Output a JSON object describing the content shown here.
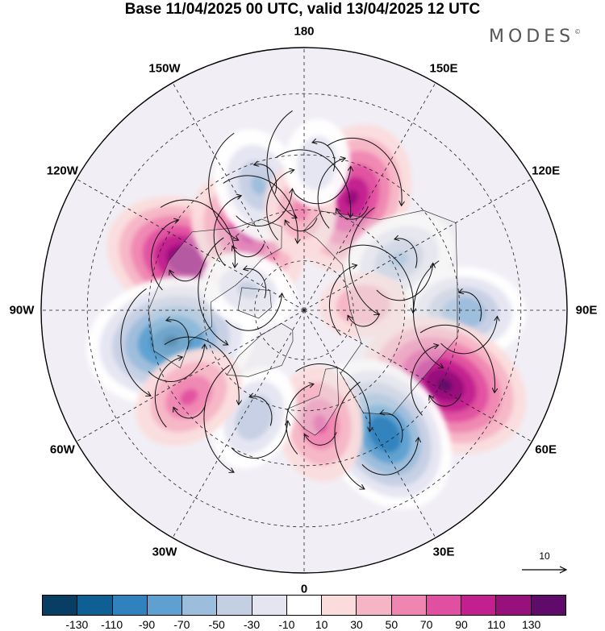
{
  "header": {
    "title": "Base 11/04/2025 00 UTC, valid 13/04/2025 12 UTC",
    "logo_text": "MODES",
    "logo_mark": "©"
  },
  "map": {
    "projection": "north-polar-stereographic",
    "grid": true,
    "meridian_labels": [
      {
        "label": "180",
        "lon": 180
      },
      {
        "label": "150E",
        "lon": 150
      },
      {
        "label": "120E",
        "lon": 120
      },
      {
        "label": "90E",
        "lon": 90
      },
      {
        "label": "60E",
        "lon": 60
      },
      {
        "label": "30E",
        "lon": 30
      },
      {
        "label": "0",
        "lon": 0
      },
      {
        "label": "30W",
        "lon": -30
      },
      {
        "label": "60W",
        "lon": -60
      },
      {
        "label": "90W",
        "lon": -90
      },
      {
        "label": "120W",
        "lon": -120
      },
      {
        "label": "150W",
        "lon": -150
      }
    ],
    "anomaly_centers": [
      {
        "lon": -113,
        "lat": 52,
        "value": 110
      },
      {
        "lon": -77,
        "lat": 50,
        "value": -120
      },
      {
        "lon": -143,
        "lat": 62,
        "value": 80
      },
      {
        "lon": -160,
        "lat": 51,
        "value": -60
      },
      {
        "lon": 157,
        "lat": 54,
        "value": 100
      },
      {
        "lon": 118,
        "lat": 58,
        "value": -60
      },
      {
        "lon": 89,
        "lat": 44,
        "value": -70
      },
      {
        "lon": 62,
        "lat": 44,
        "value": 120
      },
      {
        "lon": 33,
        "lat": 47,
        "value": -110
      },
      {
        "lon": 8,
        "lat": 56,
        "value": 60
      },
      {
        "lon": -25,
        "lat": 55,
        "value": -50
      },
      {
        "lon": -53,
        "lat": 48,
        "value": 60
      },
      {
        "lon": -178,
        "lat": 60,
        "value": 40
      },
      {
        "lon": 175,
        "lat": 47,
        "value": -30
      },
      {
        "lon": 95,
        "lat": 72,
        "value": 30
      },
      {
        "lon": -110,
        "lat": 72,
        "value": -40
      }
    ]
  },
  "reference_vector": {
    "label": "10"
  },
  "colorbar": {
    "colors": [
      "#083d64",
      "#0d5f94",
      "#2f82bd",
      "#5ea1d0",
      "#9cbddc",
      "#c5cfe3",
      "#e5e5f2",
      "#ffffff",
      "#fbdcdc",
      "#f6b5c6",
      "#ef86b2",
      "#e04fa0",
      "#c21f8f",
      "#98107c",
      "#5e0b6a"
    ],
    "tick_labels": [
      "-130",
      "-110",
      "-90",
      "-70",
      "-50",
      "-30",
      "-10",
      "10",
      "30",
      "50",
      "70",
      "90",
      "110",
      "130"
    ]
  }
}
